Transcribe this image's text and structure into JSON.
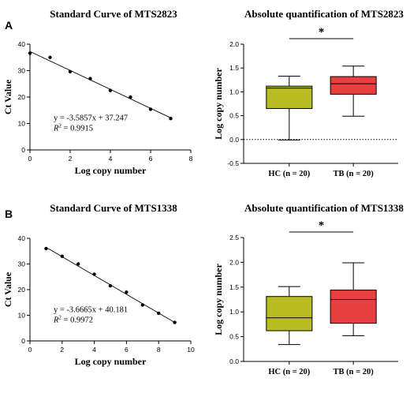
{
  "chart_data": [
    {
      "type": "scatter",
      "panel": "A",
      "title": "Standard Curve of MTS2823",
      "xlabel": "Log copy number",
      "ylabel": "Ct Value",
      "xlim": [
        0,
        8
      ],
      "ylim": [
        0,
        40
      ],
      "xticks": [
        0,
        2,
        4,
        6,
        8
      ],
      "yticks": [
        0,
        10,
        20,
        30,
        40
      ],
      "x": [
        0,
        1,
        2,
        3,
        4,
        5,
        6,
        7
      ],
      "y": [
        36.6,
        35.0,
        29.6,
        27.0,
        22.5,
        20.0,
        15.4,
        11.9
      ],
      "fit": {
        "slope": -3.5857,
        "intercept": 37.247,
        "x_range": [
          0,
          7
        ]
      },
      "equation_label": "y = -3.5857x + 37.247",
      "r2_label": "= 0.9915",
      "r2_symbol": "R"
    },
    {
      "type": "box",
      "title": "Absolute quantification of MTS2823",
      "xlabel": "",
      "ylabel": "Log copy number",
      "ylim": [
        -0.5,
        2.0
      ],
      "yticks": [
        -0.5,
        0.0,
        0.5,
        1.0,
        1.5,
        2.0
      ],
      "ytick_labels": [
        "-0.5",
        "0.0",
        "0.5",
        "1.0",
        "1.5",
        "2.0"
      ],
      "reference_line": 0.0,
      "categories": [
        "HC (n = 20)",
        "TB (n = 20)"
      ],
      "boxes": [
        {
          "min": -0.01,
          "q1": 0.65,
          "median": 1.08,
          "q3": 1.12,
          "max": 1.33,
          "color": "#b8bd22"
        },
        {
          "min": 0.49,
          "q1": 0.95,
          "median": 1.17,
          "q3": 1.32,
          "max": 1.54,
          "color": "#e84040"
        }
      ],
      "significance": "*"
    },
    {
      "type": "scatter",
      "panel": "B",
      "title": "Standard Curve of MTS1338",
      "xlabel": "Log copy number",
      "ylabel": "Ct Value",
      "xlim": [
        0,
        10
      ],
      "ylim": [
        0,
        40
      ],
      "xticks": [
        0,
        2,
        4,
        6,
        8,
        10
      ],
      "yticks": [
        0,
        10,
        20,
        30,
        40
      ],
      "x": [
        1,
        2,
        3,
        4,
        5,
        6,
        7,
        8,
        9
      ],
      "y": [
        36.0,
        33.0,
        30.0,
        26.0,
        21.5,
        19.0,
        14.0,
        10.8,
        7.2
      ],
      "fit": {
        "slope": -3.6665,
        "intercept": 40.181,
        "x_range": [
          1,
          9
        ]
      },
      "equation_label": "y = -3.6665x + 40.181",
      "r2_label": "= 0.9972",
      "r2_symbol": "R"
    },
    {
      "type": "box",
      "title": "Absolute quantification of MTS1338",
      "xlabel": "",
      "ylabel": "Log copy number",
      "ylim": [
        0,
        2.5
      ],
      "yticks": [
        0,
        0.5,
        1.0,
        1.5,
        2.0,
        2.5
      ],
      "ytick_labels": [
        "0.0",
        "0.5",
        "1.0",
        "1.5",
        "2.0",
        "2.5"
      ],
      "categories": [
        "HC (n = 20)",
        "TB (n = 20)"
      ],
      "boxes": [
        {
          "min": 0.34,
          "q1": 0.62,
          "median": 0.88,
          "q3": 1.31,
          "max": 1.51,
          "color": "#b8bd22"
        },
        {
          "min": 0.52,
          "q1": 0.77,
          "median": 1.25,
          "q3": 1.44,
          "max": 1.99,
          "color": "#e84040"
        }
      ],
      "significance": "*"
    }
  ]
}
